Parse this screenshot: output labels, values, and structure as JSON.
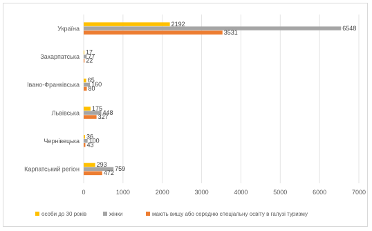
{
  "chart_data": {
    "type": "bar",
    "orientation": "horizontal",
    "categories": [
      "Україна",
      "Закарпатська",
      "Івано-Франківська",
      "Львівська",
      "Чернівецька",
      "Карпатський регіон"
    ],
    "series": [
      {
        "name": "особи до 30 років",
        "color": "#ffc000",
        "values": [
          2192,
          17,
          65,
          175,
          36,
          293
        ]
      },
      {
        "name": "жінки",
        "color": "#a5a5a5",
        "values": [
          6548,
          77,
          160,
          448,
          100,
          759
        ]
      },
      {
        "name": "мають вищу або середню спеціальну освіту в галузі туризму",
        "color": "#ed7d31",
        "values": [
          3531,
          22,
          80,
          327,
          43,
          472
        ]
      }
    ],
    "xlim": [
      0,
      7000
    ],
    "xticks": [
      0,
      1000,
      2000,
      3000,
      4000,
      5000,
      6000,
      7000
    ],
    "grid": true,
    "legend": "bottom"
  }
}
